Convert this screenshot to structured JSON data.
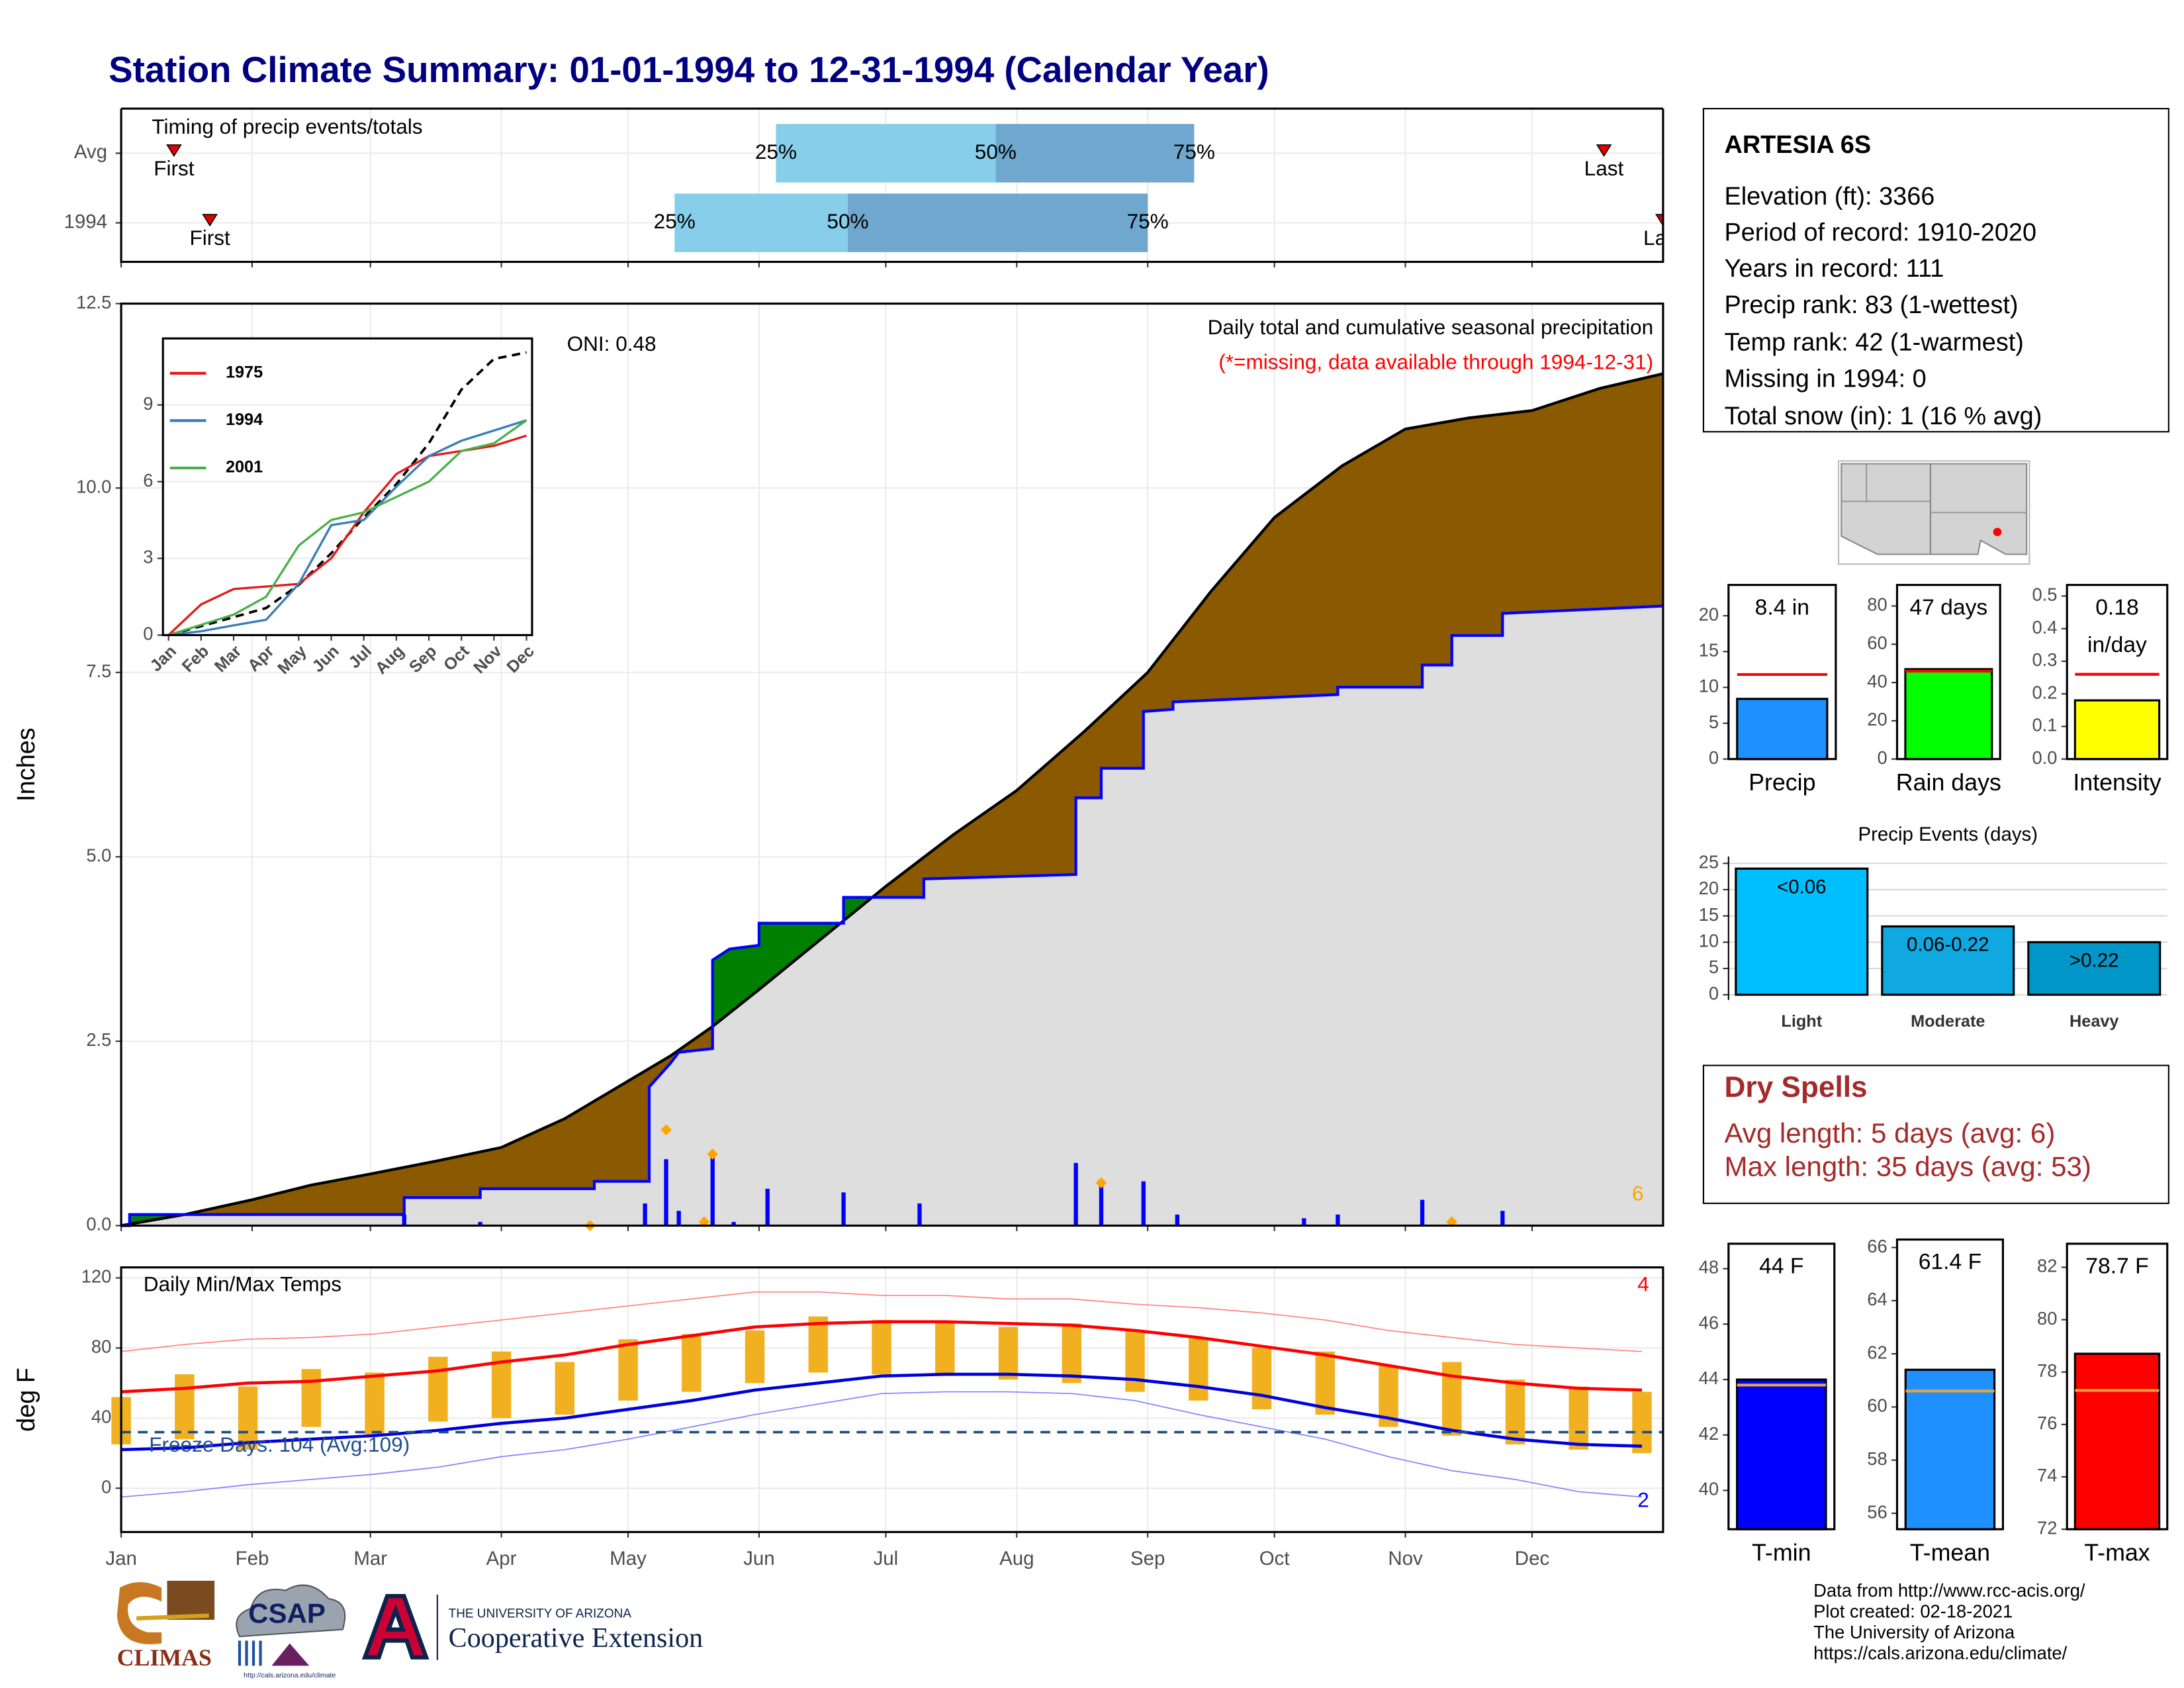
{
  "title": "Station Climate Summary: 01-01-1994 to 12-31-1994 (Calendar Year)",
  "station": {
    "name": "ARTESIA 6S",
    "lines": [
      "Elevation (ft): 3366",
      "Period of record: 1910-2020",
      "Years in record: 111",
      "Precip rank: 83 (1-wettest)",
      "Temp rank: 42 (1-warmest)",
      "Missing in 1994: 0",
      "Total snow (in): 1 (16 % avg)"
    ]
  },
  "dry_spells": {
    "title": "Dry Spells",
    "lines": [
      "Avg length: 5 days (avg: 6)",
      "Max length: 35 days (avg: 53)"
    ]
  },
  "footer": {
    "lines": [
      "Data from http://www.rcc-acis.org/",
      "Plot created: 02-18-2021",
      "The University of Arizona",
      "https://cals.arizona.edu/climate/"
    ]
  },
  "logos": {
    "climas": "CLIMAS",
    "csap": "CSAP",
    "csap_url": "http://cals.arizona.edu/climate",
    "university": "THE UNIVERSITY OF ARIZONA",
    "extension": "Cooperative Extension"
  },
  "chart_data": [
    {
      "type": "range",
      "title": "Timing of precip events/totals",
      "categories": [
        "Avg",
        "1994"
      ],
      "series": [
        {
          "name": "First",
          "values": [
            12.5,
            21
          ]
        },
        {
          "name": "25%",
          "values": [
            155,
            131
          ]
        },
        {
          "name": "50%",
          "values": [
            207,
            172
          ]
        },
        {
          "name": "75%",
          "values": [
            254,
            243
          ]
        },
        {
          "name": "Last",
          "values": [
            351,
            365
          ]
        }
      ],
      "colors": [
        "#87ceeb",
        "#6fa7cf"
      ],
      "marker_color": "#e00000",
      "xlim": [
        0,
        365
      ],
      "xticks": [
        0,
        31,
        59,
        90,
        120,
        151,
        181,
        212,
        243,
        273,
        304,
        334
      ]
    },
    {
      "type": "cumulative",
      "title": "Daily total and cumulative seasonal precipitation",
      "subtitle": "(*=missing, data available through 1994-12-31)",
      "annotation": "ONI: 0.48",
      "snow_count": 6,
      "ylabel": "Inches",
      "xlim": [
        0,
        365
      ],
      "ylim": [
        0,
        12.5
      ],
      "yticks": [
        {
          "value": 0,
          "label": "0.0"
        },
        {
          "value": 2.5,
          "label": "2.5"
        },
        {
          "value": 5,
          "label": "5.0"
        },
        {
          "value": 7.5,
          "label": "7.5"
        },
        {
          "value": 10,
          "label": "10.0"
        },
        {
          "value": 12.5,
          "label": "12.5"
        }
      ],
      "xticks": [
        0,
        31,
        59,
        90,
        120,
        151,
        181,
        212,
        243,
        273,
        304,
        334
      ],
      "normal": {
        "x": [
          0,
          15,
          31,
          45,
          59,
          75,
          90,
          105,
          120,
          130,
          140,
          151,
          166,
          181,
          197,
          212,
          228,
          243,
          258,
          273,
          289,
          304,
          319,
          334,
          350,
          365
        ],
        "values": [
          0,
          0.15,
          0.35,
          0.55,
          0.7,
          0.88,
          1.06,
          1.45,
          1.96,
          2.3,
          2.7,
          3.2,
          3.9,
          4.6,
          5.3,
          5.9,
          6.7,
          7.5,
          8.6,
          9.6,
          10.3,
          10.8,
          10.95,
          11.05,
          11.35,
          11.55
        ]
      },
      "observed": {
        "x": [
          0,
          2,
          2,
          67,
          67,
          85,
          85,
          112,
          112,
          125,
          125,
          130,
          132,
          140,
          140,
          144,
          151,
          151,
          171,
          171,
          190,
          190,
          226,
          226,
          232,
          232,
          242,
          242,
          249,
          249,
          288,
          288,
          308,
          308,
          315,
          315,
          327,
          327,
          365
        ],
        "values": [
          0,
          0,
          0.15,
          0.15,
          0.38,
          0.38,
          0.5,
          0.5,
          0.6,
          0.6,
          1.88,
          2.2,
          2.35,
          2.4,
          3.6,
          3.75,
          3.8,
          4.1,
          4.1,
          4.45,
          4.45,
          4.7,
          4.76,
          5.8,
          5.8,
          6.2,
          6.2,
          6.97,
          7.0,
          7.1,
          7.2,
          7.3,
          7.3,
          7.6,
          7.6,
          8.0,
          8.0,
          8.3,
          8.4
        ]
      },
      "daily": {
        "x": [
          67,
          85,
          124,
          129,
          132,
          140,
          145,
          153,
          171,
          189,
          226,
          232,
          242,
          250,
          280,
          288,
          308,
          327
        ],
        "values": [
          0.15,
          0.05,
          0.3,
          0.9,
          0.2,
          0.96,
          0.05,
          0.5,
          0.45,
          0.3,
          0.85,
          0.6,
          0.6,
          0.15,
          0.1,
          0.15,
          0.35,
          0.2
        ]
      },
      "markers": {
        "x": [
          111,
          138,
          129,
          140,
          232,
          315
        ],
        "values": [
          0.0,
          0.05,
          1.3,
          0.97,
          0.58,
          0.05
        ]
      },
      "colors": {
        "normal": "#000000",
        "observed": "#0000ff",
        "deficit": "#8b5a00",
        "surplus": "#008000",
        "base": "#dedede",
        "daily": "#0000ff",
        "markers": "#ffa500"
      }
    },
    {
      "type": "line",
      "categories": [
        "Jan",
        "Feb",
        "Mar",
        "Apr",
        "May",
        "Jun",
        "Jul",
        "Aug",
        "Sep",
        "Oct",
        "Nov",
        "Dec"
      ],
      "ylim": [
        0,
        11.6
      ],
      "yticks": [
        0,
        3,
        6,
        9
      ],
      "average": {
        "values": [
          0,
          0.35,
          0.7,
          1.06,
          1.96,
          3.2,
          4.6,
          5.9,
          7.5,
          9.6,
          10.8,
          11.05
        ],
        "color": "#000000"
      },
      "series": [
        {
          "name": "1975",
          "color": "#e41a1c",
          "values": [
            0,
            1.2,
            1.8,
            1.9,
            2.0,
            3.0,
            4.8,
            6.3,
            7.0,
            7.2,
            7.4,
            7.8
          ]
        },
        {
          "name": "1994",
          "color": "#377eb8",
          "values": [
            0,
            0.15,
            0.38,
            0.6,
            2.0,
            4.3,
            4.5,
            5.8,
            7.0,
            7.6,
            8.0,
            8.4
          ]
        },
        {
          "name": "2001",
          "color": "#4daf4a",
          "values": [
            0,
            0.4,
            0.8,
            1.5,
            3.5,
            4.5,
            4.8,
            5.4,
            6.0,
            7.2,
            7.5,
            8.4
          ]
        }
      ]
    },
    {
      "type": "temperature",
      "title": "Daily Min/Max Temps",
      "annotation": "Freeze Days: 104 (Avg:109)",
      "ylabel": "deg F",
      "record_high_count": 4,
      "record_low_count": 2,
      "xlim": [
        0,
        365
      ],
      "ylim": [
        -25,
        126
      ],
      "yticks": [
        0,
        40,
        80,
        120
      ],
      "freeze_threshold": 32,
      "xticks": [
        {
          "value": 0,
          "label": "Jan"
        },
        {
          "value": 31,
          "label": "Feb"
        },
        {
          "value": 59,
          "label": "Mar"
        },
        {
          "value": 90,
          "label": "Apr"
        },
        {
          "value": 120,
          "label": "May"
        },
        {
          "value": 151,
          "label": "Jun"
        },
        {
          "value": 181,
          "label": "Jul"
        },
        {
          "value": 212,
          "label": "Aug"
        },
        {
          "value": 243,
          "label": "Sep"
        },
        {
          "value": 273,
          "label": "Oct"
        },
        {
          "value": 304,
          "label": "Nov"
        },
        {
          "value": 334,
          "label": "Dec"
        }
      ],
      "x": [
        0,
        15,
        30,
        45,
        60,
        75,
        90,
        105,
        120,
        135,
        150,
        165,
        180,
        195,
        210,
        225,
        240,
        255,
        270,
        285,
        300,
        315,
        330,
        345,
        360
      ],
      "normal_max": {
        "color": "#ff0000",
        "values": [
          55,
          57,
          60,
          61,
          64,
          67,
          72,
          76,
          82,
          87,
          92,
          94,
          95,
          95,
          94,
          93,
          90,
          86,
          81,
          76,
          70,
          64,
          60,
          57,
          56
        ]
      },
      "normal_min": {
        "color": "#0000dd",
        "values": [
          22,
          23,
          26,
          28,
          30,
          33,
          37,
          40,
          45,
          50,
          56,
          60,
          64,
          65,
          65,
          64,
          62,
          58,
          53,
          46,
          40,
          33,
          28,
          25,
          24
        ]
      },
      "record_max": {
        "color": "#ff8080",
        "values": [
          78,
          82,
          85,
          86,
          88,
          92,
          96,
          100,
          104,
          108,
          112,
          112,
          110,
          110,
          108,
          108,
          105,
          103,
          100,
          96,
          90,
          86,
          82,
          80,
          78
        ]
      },
      "record_min": {
        "color": "#8080ff",
        "values": [
          -5,
          -2,
          2,
          5,
          8,
          12,
          18,
          22,
          28,
          35,
          42,
          48,
          54,
          55,
          55,
          54,
          50,
          42,
          35,
          28,
          18,
          10,
          5,
          -2,
          -5
        ]
      },
      "observed_max": {
        "color": "#f0b020",
        "values": [
          52,
          65,
          58,
          68,
          66,
          75,
          78,
          72,
          85,
          88,
          90,
          98,
          96,
          95,
          92,
          94,
          90,
          86,
          80,
          78,
          70,
          72,
          62,
          58,
          55
        ]
      },
      "observed_min": {
        "color": "#f0b020",
        "values": [
          25,
          28,
          22,
          35,
          30,
          38,
          40,
          42,
          50,
          55,
          60,
          66,
          65,
          64,
          62,
          60,
          55,
          50,
          45,
          42,
          35,
          30,
          25,
          22,
          20
        ]
      }
    },
    {
      "type": "bar",
      "categories": [
        "Precip"
      ],
      "values": [
        8.4
      ],
      "value_labels": [
        "8.4 in"
      ],
      "color": "#1e90ff",
      "reference": 11.8,
      "reference_color": "#ff0000",
      "ylim": [
        0,
        24.3
      ],
      "yticks": [
        0,
        5,
        10,
        15,
        20
      ]
    },
    {
      "type": "bar",
      "categories": [
        "Rain days"
      ],
      "values": [
        47
      ],
      "value_labels": [
        "47 days"
      ],
      "color": "#00ff00",
      "reference": 46,
      "reference_color": "#ff0000",
      "ylim": [
        0,
        91
      ],
      "yticks": [
        0,
        20,
        40,
        60,
        80
      ]
    },
    {
      "type": "bar",
      "categories": [
        "Intensity"
      ],
      "values": [
        0.18
      ],
      "value_labels": [
        "0.18"
      ],
      "unit_label": "in/day",
      "color": "#ffff00",
      "reference": 0.26,
      "reference_color": "#ff0000",
      "ylim": [
        0,
        0.534
      ],
      "yticks": [
        {
          "value": 0,
          "label": "0.0"
        },
        0.1,
        0.2,
        0.3,
        0.4,
        0.5
      ]
    },
    {
      "type": "bar",
      "title": "Precip Events (days)",
      "categories": [
        "Light",
        "Moderate",
        "Heavy"
      ],
      "values": [
        24,
        13,
        10
      ],
      "bar_labels": [
        "<0.06",
        "0.06-0.22",
        ">0.22"
      ],
      "colors": [
        "#00bfff",
        "#0fa8e0",
        "#0096c8"
      ],
      "grid": true,
      "ylim": [
        -1,
        26.3
      ],
      "yticks": [
        0,
        5,
        10,
        15,
        20,
        25
      ]
    },
    {
      "type": "bar",
      "categories": [
        "T-min"
      ],
      "values": [
        44
      ],
      "value_labels": [
        "44 F"
      ],
      "color": "#0000ff",
      "reference": 43.8,
      "reference_color": "#e8a33c",
      "ylim": [
        38.6,
        48.9
      ],
      "yticks": [
        40,
        42,
        44,
        46,
        48
      ]
    },
    {
      "type": "bar",
      "categories": [
        "T-mean"
      ],
      "values": [
        61.4
      ],
      "value_labels": [
        "61.4 F"
      ],
      "color": "#1e90ff",
      "reference": 60.6,
      "reference_color": "#e8a33c",
      "ylim": [
        55.4,
        66.3
      ],
      "yticks": [
        56,
        58,
        60,
        62,
        64,
        66
      ]
    },
    {
      "type": "bar",
      "categories": [
        "T-max"
      ],
      "values": [
        78.7
      ],
      "value_labels": [
        "78.7 F"
      ],
      "color": "#ff0000",
      "reference": 77.3,
      "reference_color": "#e8a33c",
      "ylim": [
        72,
        82.9
      ],
      "yticks": [
        72,
        74,
        76,
        78,
        80,
        82
      ]
    }
  ]
}
